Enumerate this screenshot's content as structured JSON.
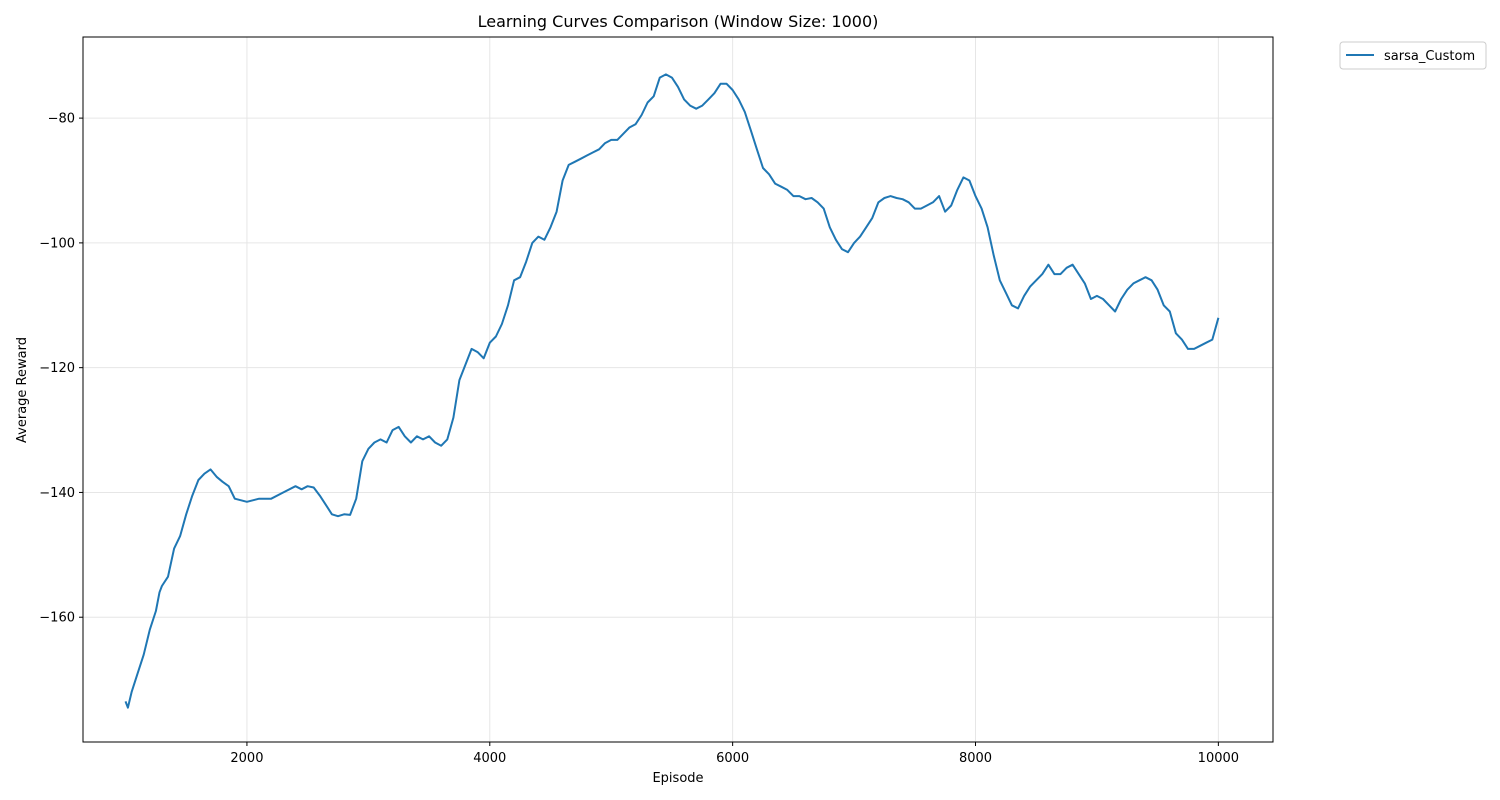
{
  "chart_data": {
    "type": "line",
    "title": "Learning Curves Comparison (Window Size: 1000)",
    "xlabel": "Episode",
    "ylabel": "Average Reward",
    "xlim": [
      650,
      10450
    ],
    "ylim": [
      -180,
      -67
    ],
    "xticks": [
      2000,
      4000,
      6000,
      8000,
      10000
    ],
    "xtick_labels": [
      "2000",
      "4000",
      "6000",
      "8000",
      "10000"
    ],
    "yticks": [
      -160,
      -140,
      -120,
      -100,
      -80
    ],
    "ytick_labels": [
      "−160",
      "−140",
      "−120",
      "−100",
      "−80"
    ],
    "grid": true,
    "legend_position": "outside-top-right",
    "series": [
      {
        "name": "sarsa_Custom",
        "color": "#1f77b4",
        "x": [
          1000,
          1020,
          1050,
          1100,
          1150,
          1200,
          1250,
          1280,
          1300,
          1350,
          1400,
          1450,
          1500,
          1550,
          1600,
          1650,
          1700,
          1750,
          1800,
          1850,
          1900,
          2000,
          2100,
          2200,
          2300,
          2400,
          2450,
          2500,
          2550,
          2600,
          2650,
          2700,
          2750,
          2800,
          2850,
          2900,
          2950,
          3000,
          3050,
          3100,
          3150,
          3200,
          3250,
          3300,
          3350,
          3400,
          3450,
          3500,
          3550,
          3600,
          3650,
          3700,
          3750,
          3800,
          3850,
          3900,
          3950,
          4000,
          4050,
          4100,
          4150,
          4200,
          4250,
          4300,
          4350,
          4400,
          4450,
          4500,
          4550,
          4600,
          4650,
          4700,
          4750,
          4800,
          4850,
          4900,
          4950,
          5000,
          5050,
          5100,
          5150,
          5200,
          5250,
          5300,
          5350,
          5400,
          5450,
          5500,
          5550,
          5600,
          5650,
          5700,
          5750,
          5800,
          5850,
          5900,
          5950,
          6000,
          6050,
          6100,
          6150,
          6200,
          6250,
          6300,
          6350,
          6400,
          6450,
          6500,
          6550,
          6600,
          6650,
          6700,
          6750,
          6800,
          6850,
          6900,
          6950,
          7000,
          7050,
          7100,
          7150,
          7200,
          7250,
          7300,
          7350,
          7400,
          7450,
          7500,
          7550,
          7600,
          7650,
          7700,
          7750,
          7800,
          7850,
          7900,
          7950,
          8000,
          8050,
          8100,
          8150,
          8200,
          8250,
          8300,
          8350,
          8400,
          8450,
          8500,
          8550,
          8600,
          8650,
          8700,
          8750,
          8800,
          8850,
          8900,
          8950,
          9000,
          9050,
          9100,
          9150,
          9200,
          9250,
          9300,
          9350,
          9400,
          9450,
          9500,
          9550,
          9600,
          9650,
          9700,
          9750,
          9800,
          9850,
          9900,
          9950,
          10000
        ],
        "values": [
          -173.5,
          -174.5,
          -172,
          -169,
          -166,
          -162,
          -159,
          -156,
          -155,
          -153.5,
          -149,
          -147,
          -143.5,
          -140.5,
          -138,
          -137,
          -136.3,
          -137.5,
          -138.3,
          -139,
          -141,
          -141.5,
          -141,
          -141,
          -140,
          -139,
          -139.5,
          -139,
          -139.2,
          -140.5,
          -142,
          -143.5,
          -143.8,
          -143.5,
          -143.6,
          -141,
          -135,
          -133,
          -132,
          -131.5,
          -132,
          -130,
          -129.5,
          -131,
          -132,
          -131,
          -131.5,
          -131,
          -132,
          -132.5,
          -131.5,
          -128,
          -122,
          -119.5,
          -117,
          -117.5,
          -118.5,
          -116,
          -115,
          -113,
          -110,
          -106,
          -105.5,
          -103,
          -100,
          -99,
          -99.5,
          -97.5,
          -95,
          -90,
          -87.5,
          -87,
          -86.5,
          -86,
          -85.5,
          -85,
          -84,
          -83.5,
          -83.5,
          -82.5,
          -81.5,
          -81,
          -79.5,
          -77.5,
          -76.5,
          -73.5,
          -73,
          -73.5,
          -75,
          -77,
          -78,
          -78.5,
          -78,
          -77,
          -76,
          -74.5,
          -74.5,
          -75.5,
          -77,
          -79,
          -82,
          -85,
          -88,
          -89,
          -90.5,
          -91,
          -91.5,
          -92.5,
          -92.5,
          -93,
          -92.8,
          -93.5,
          -94.5,
          -97.5,
          -99.5,
          -101,
          -101.5,
          -100,
          -99,
          -97.5,
          -96,
          -93.5,
          -92.8,
          -92.5,
          -92.8,
          -93,
          -93.5,
          -94.5,
          -94.5,
          -94,
          -93.5,
          -92.5,
          -95,
          -94,
          -91.5,
          -89.5,
          -90,
          -92.5,
          -94.5,
          -97.5,
          -102,
          -106,
          -108,
          -110,
          -110.5,
          -108.5,
          -107,
          -106,
          -105,
          -103.5,
          -105,
          -105,
          -104,
          -103.5,
          -105,
          -106.5,
          -109,
          -108.5,
          -109,
          -110,
          -111,
          -109,
          -107.5,
          -106.5,
          -106,
          -105.5,
          -106,
          -107.5,
          -110,
          -111,
          -114.5,
          -115.5,
          -117,
          -117,
          -116.5,
          -116,
          -115.5,
          -112
        ]
      }
    ]
  }
}
